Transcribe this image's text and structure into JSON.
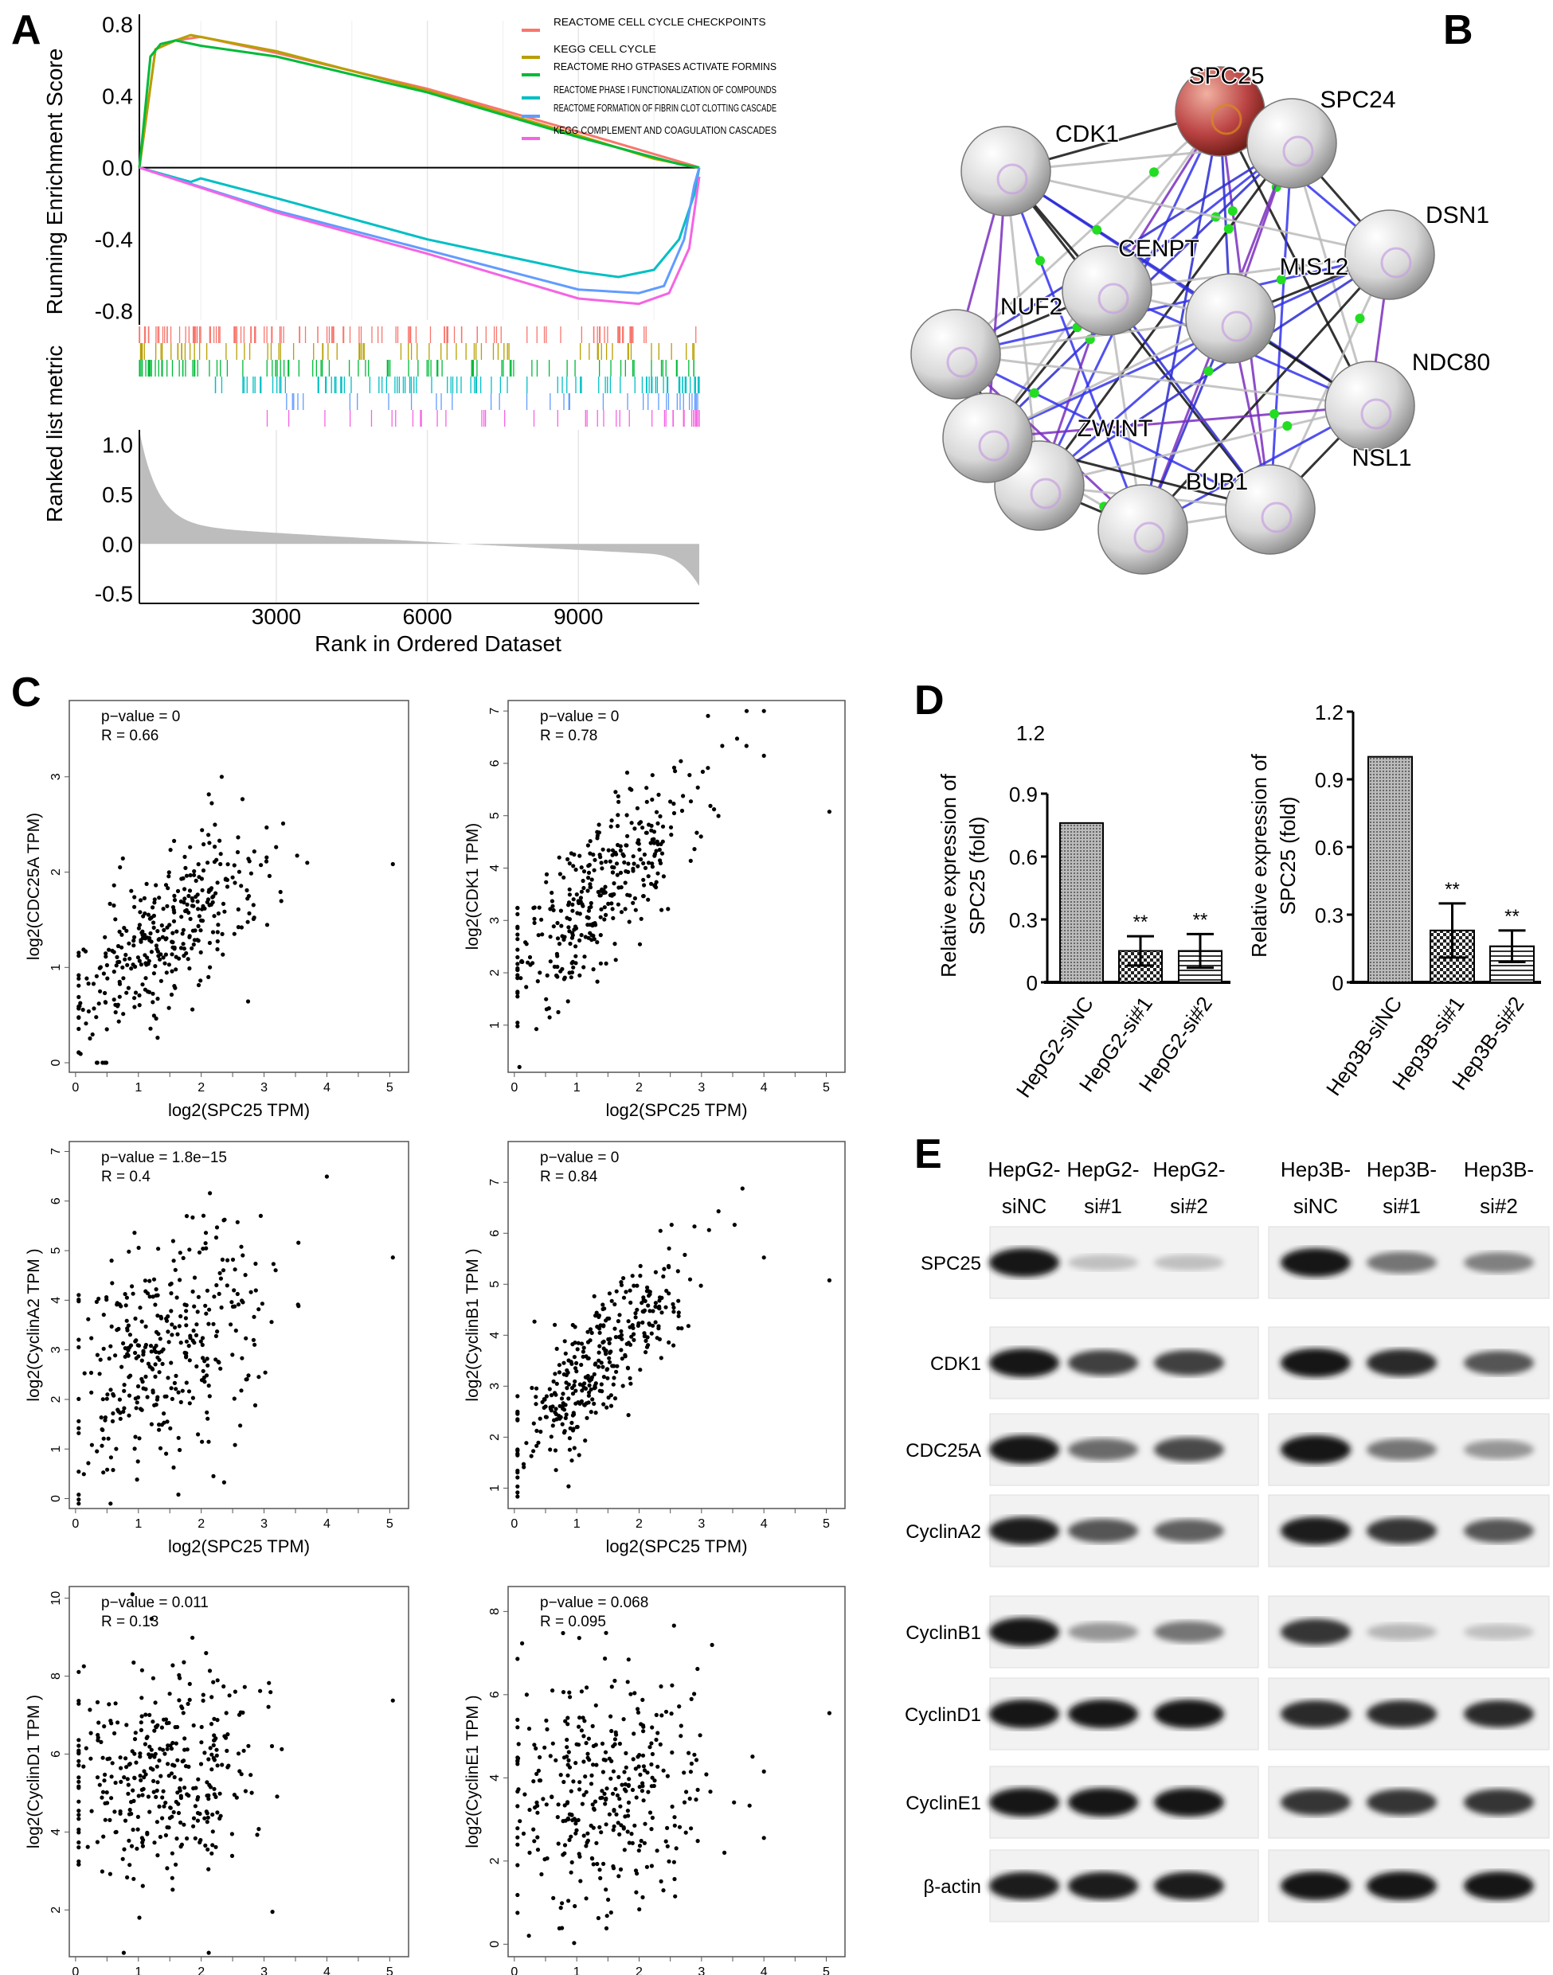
{
  "panels": {
    "a": "A",
    "b": "B",
    "c": "C",
    "d": "D",
    "e": "E"
  },
  "chart_data": [
    {
      "id": "A",
      "type": "line",
      "xlabel": "Rank in Ordered Dataset",
      "ylabel": "Running Enrichment Score",
      "ylabel2": "Ranked list metric",
      "xticks": [
        3000,
        6000,
        9000
      ],
      "xlim": [
        280,
        11400
      ],
      "ylim": [
        -0.85,
        0.82
      ],
      "yticks": [
        0.8,
        0.4,
        0.0,
        -0.4,
        -0.8
      ],
      "ylim2": [
        -0.6,
        1.15
      ],
      "yticks2": [
        1.0,
        0.5,
        0.0,
        -0.5
      ],
      "grid": "vertical",
      "legend": "top-right",
      "series": [
        {
          "name": "REACTOME CELL CYCLE CHECKPOINTS",
          "color": "#f8766d",
          "points": [
            [
              280,
              0
            ],
            [
              600,
              0.66
            ],
            [
              1000,
              0.71
            ],
            [
              1500,
              0.73
            ],
            [
              3000,
              0.64
            ],
            [
              6000,
              0.44
            ],
            [
              9000,
              0.2
            ],
            [
              11300,
              0.01
            ],
            [
              11400,
              0
            ]
          ]
        },
        {
          "name": "KEGG CELL CYCLE",
          "color": "#b79f00",
          "points": [
            [
              280,
              0
            ],
            [
              600,
              0.66
            ],
            [
              1000,
              0.71
            ],
            [
              1300,
              0.74
            ],
            [
              3000,
              0.65
            ],
            [
              6000,
              0.43
            ],
            [
              9000,
              0.18
            ],
            [
              10500,
              0.05
            ],
            [
              11400,
              0
            ]
          ]
        },
        {
          "name": "REACTOME RHO GTPASES ACTIVATE FORMINS",
          "color": "#00ba38",
          "points": [
            [
              280,
              0
            ],
            [
              500,
              0.62
            ],
            [
              700,
              0.69
            ],
            [
              1000,
              0.71
            ],
            [
              1500,
              0.68
            ],
            [
              3000,
              0.62
            ],
            [
              6000,
              0.42
            ],
            [
              9000,
              0.17
            ],
            [
              11000,
              0.02
            ],
            [
              11400,
              0
            ]
          ]
        },
        {
          "name": "REACTOME PHASE I FUNCTIONALIZATION OF COMPOUNDS",
          "color": "#00bfc4",
          "points": [
            [
              280,
              0
            ],
            [
              1300,
              -0.08
            ],
            [
              1500,
              -0.06
            ],
            [
              3000,
              -0.17
            ],
            [
              6000,
              -0.4
            ],
            [
              9000,
              -0.58
            ],
            [
              9800,
              -0.61
            ],
            [
              10500,
              -0.57
            ],
            [
              11000,
              -0.4
            ],
            [
              11300,
              -0.15
            ],
            [
              11400,
              0
            ]
          ]
        },
        {
          "name": "REACTOME FORMATION OF FIBRIN CLOT CLOTTING CASCADE",
          "color": "#619cff",
          "points": [
            [
              280,
              0
            ],
            [
              3000,
              -0.24
            ],
            [
              6000,
              -0.46
            ],
            [
              9000,
              -0.68
            ],
            [
              10200,
              -0.7
            ],
            [
              10700,
              -0.66
            ],
            [
              11100,
              -0.4
            ],
            [
              11300,
              -0.1
            ],
            [
              11400,
              0
            ]
          ]
        },
        {
          "name": "KEGG COMPLEMENT AND COAGULATION CASCADES",
          "color": "#f564e3",
          "points": [
            [
              280,
              0
            ],
            [
              3000,
              -0.25
            ],
            [
              6000,
              -0.48
            ],
            [
              9000,
              -0.73
            ],
            [
              10200,
              -0.76
            ],
            [
              10800,
              -0.7
            ],
            [
              11200,
              -0.45
            ],
            [
              11400,
              -0.05
            ]
          ]
        }
      ]
    },
    {
      "id": "B",
      "type": "network",
      "nodes": [
        "SPC25",
        "SPC24",
        "CDK1",
        "DSN1",
        "CENPT",
        "MIS12",
        "NUF2",
        "NDC80",
        "ZWINT",
        "NSL1",
        "BUB1"
      ],
      "highlight": "SPC25",
      "highlight_color": "#b03a2e"
    },
    {
      "id": "C",
      "type": "scatter",
      "plots": [
        {
          "ylabel": "log2(CDC25A TPM)",
          "xlabel": "log2(SPC25 TPM)",
          "p": "p−value = 0",
          "r": "R = 0.66",
          "R": 0.66,
          "xticks": [
            0,
            0.5,
            1,
            1.5,
            2,
            2.5,
            3,
            3.5,
            4,
            4.5,
            5
          ],
          "yticks": [
            0,
            1,
            2,
            3
          ],
          "ylim": [
            -0.1,
            3.8
          ],
          "xlim": [
            -0.1,
            5.3
          ]
        },
        {
          "ylabel": "log2(CDK1 TPM)",
          "xlabel": "log2(SPC25 TPM)",
          "p": "p−value = 0",
          "r": "R = 0.78",
          "R": 0.78,
          "xticks": [
            0,
            0.5,
            1,
            1.5,
            2,
            2.5,
            3,
            3.5,
            4,
            4.5,
            5
          ],
          "yticks": [
            1,
            2,
            3,
            4,
            5,
            6,
            7
          ],
          "ylim": [
            0.1,
            7.2
          ],
          "xlim": [
            -0.1,
            5.3
          ]
        },
        {
          "ylabel": "log2(CyclinA2 TPM )",
          "xlabel": "log2(SPC25 TPM)",
          "p": "p−value = 1.8e−15",
          "r": "R = 0.4",
          "R": 0.4,
          "xticks": [
            0,
            0.5,
            1,
            1.5,
            2,
            2.5,
            3,
            3.5,
            4,
            4.5,
            5
          ],
          "yticks": [
            0,
            1,
            2,
            3,
            4,
            5,
            6,
            7
          ],
          "ylim": [
            -0.2,
            7.2
          ],
          "xlim": [
            -0.1,
            5.3
          ]
        },
        {
          "ylabel": "log2(CyclinB1 TPM )",
          "xlabel": "log2(SPC25 TPM)",
          "p": "p−value = 0",
          "r": "R = 0.84",
          "R": 0.84,
          "xticks": [
            0,
            0.5,
            1,
            1.5,
            2,
            2.5,
            3,
            3.5,
            4,
            4.5,
            5
          ],
          "yticks": [
            1,
            2,
            3,
            4,
            5,
            6,
            7
          ],
          "ylim": [
            0.6,
            7.8
          ],
          "xlim": [
            -0.1,
            5.3
          ]
        },
        {
          "ylabel": "log2(CyclinD1 TPM )",
          "xlabel": "log2(SPC25 TPM)",
          "p": "p−value = 0.011",
          "r": "R = 0.13",
          "R": 0.13,
          "xticks": [
            0,
            0.5,
            1,
            1.5,
            2,
            2.5,
            3,
            3.5,
            4,
            4.5,
            5
          ],
          "yticks": [
            2,
            4,
            6,
            8,
            10
          ],
          "ylim": [
            0.8,
            10.3
          ],
          "xlim": [
            -0.1,
            5.3
          ]
        },
        {
          "ylabel": "log2(CyclinE1 TPM )",
          "xlabel": "log2(SPC25 TPM)",
          "p": "p−value = 0.068",
          "r": "R = 0.095",
          "R": 0.095,
          "xticks": [
            0,
            0.5,
            1,
            1.5,
            2,
            2.5,
            3,
            3.5,
            4,
            4.5,
            5
          ],
          "yticks": [
            0,
            2,
            4,
            6,
            8
          ],
          "ylim": [
            -0.3,
            8.6
          ],
          "xlim": [
            -0.1,
            5.3
          ]
        }
      ]
    },
    {
      "id": "D",
      "type": "bar",
      "ylabel": "Relative expression of SPC25 (fold)",
      "ylabel_line1": "Relative expression of",
      "ylabel_line2": "SPC25 (fold)",
      "stray_tick": "1.2",
      "plots": [
        {
          "categories": [
            "HepG2-siNC",
            "HepG2-si#1",
            "HepG2-si#2"
          ],
          "values": [
            0.76,
            0.15,
            0.15
          ],
          "errors": [
            0,
            0.07,
            0.08
          ],
          "sig": [
            "",
            "**",
            "**"
          ],
          "ylim": [
            0,
            0.9
          ],
          "yticks": [
            "0",
            "0.3",
            "0.6",
            "0.9"
          ]
        },
        {
          "categories": [
            "Hep3B-siNC",
            "Hep3B-si#1",
            "Hep3B-si#2"
          ],
          "values": [
            1.0,
            0.23,
            0.16
          ],
          "errors": [
            0,
            0.12,
            0.07
          ],
          "sig": [
            "",
            "**",
            "**"
          ],
          "ylim": [
            0,
            1.2
          ],
          "yticks": [
            "0",
            "0.3",
            "0.6",
            "0.9",
            "1.2"
          ]
        }
      ]
    },
    {
      "id": "E",
      "type": "western-blot",
      "lanes": [
        [
          "HepG2-",
          "siNC"
        ],
        [
          "HepG2-",
          "si#1"
        ],
        [
          "HepG2-",
          "si#2"
        ],
        [
          "Hep3B-",
          "siNC"
        ],
        [
          "Hep3B-",
          "si#1"
        ],
        [
          "Hep3B-",
          "si#2"
        ]
      ],
      "rows": [
        {
          "name": "SPC25",
          "intensity": [
            1,
            0.2,
            0.2,
            1,
            0.55,
            0.5
          ]
        },
        {
          "name": "CDK1",
          "intensity": [
            1,
            0.8,
            0.8,
            1,
            0.9,
            0.7
          ]
        },
        {
          "name": "CDC25A",
          "intensity": [
            1,
            0.6,
            0.75,
            1,
            0.55,
            0.4
          ]
        },
        {
          "name": "CyclinA2",
          "intensity": [
            0.95,
            0.7,
            0.65,
            0.95,
            0.85,
            0.7
          ]
        },
        {
          "name": "CyclinB1",
          "intensity": [
            1,
            0.4,
            0.55,
            0.85,
            0.25,
            0.2
          ]
        },
        {
          "name": "CyclinD1",
          "intensity": [
            1,
            1,
            1,
            0.9,
            0.9,
            0.9
          ]
        },
        {
          "name": "CyclinE1",
          "intensity": [
            1,
            1,
            1,
            0.85,
            0.85,
            0.85
          ]
        },
        {
          "name": "β-actin",
          "intensity": [
            0.95,
            0.95,
            0.95,
            1,
            1,
            1
          ]
        }
      ]
    }
  ]
}
